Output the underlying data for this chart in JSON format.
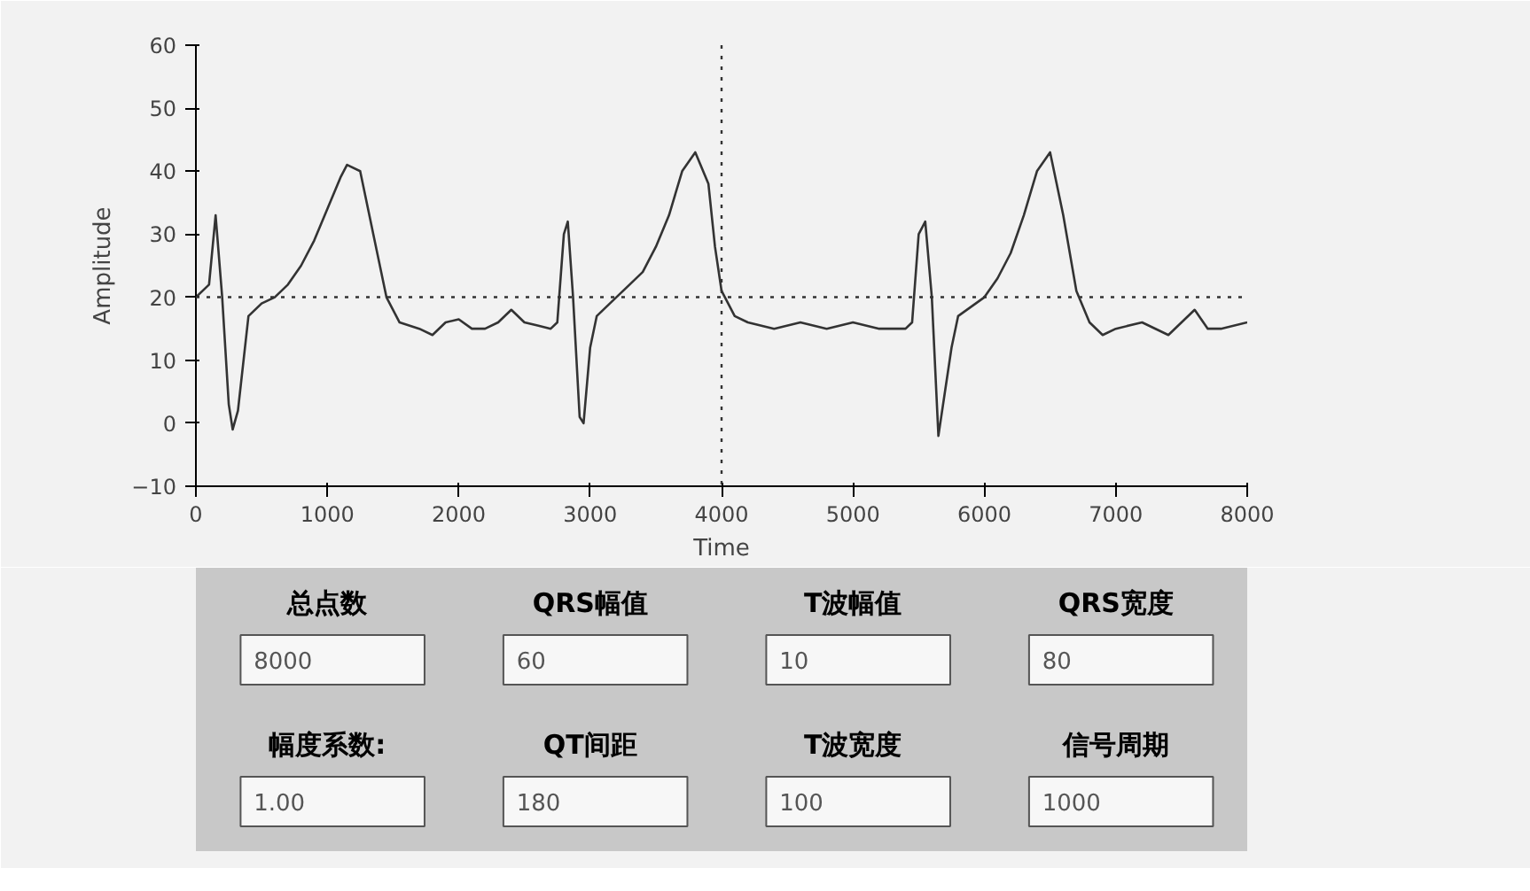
{
  "chart_data": {
    "type": "line",
    "xlabel": "Time",
    "ylabel": "Amplitude",
    "x": [
      0,
      100,
      150,
      200,
      250,
      280,
      320,
      400,
      500,
      600,
      700,
      800,
      900,
      1000,
      1100,
      1150,
      1250,
      1350,
      1450,
      1550,
      1700,
      1800,
      1900,
      2000,
      2100,
      2200,
      2300,
      2400,
      2500,
      2600,
      2700,
      2750,
      2800,
      2830,
      2870,
      2920,
      2950,
      3000,
      3050,
      3150,
      3300,
      3400,
      3500,
      3600,
      3700,
      3800,
      3900,
      3950,
      4000,
      4100,
      4200,
      4400,
      4600,
      4800,
      5000,
      5200,
      5400,
      5450,
      5500,
      5550,
      5600,
      5650,
      5700,
      5750,
      5800,
      6000,
      6100,
      6200,
      6300,
      6400,
      6500,
      6600,
      6700,
      6800,
      6900,
      7000,
      7200,
      7400,
      7500,
      7600,
      7700,
      7800,
      8000
    ],
    "series": [
      {
        "color": "#333333",
        "values": [
          20,
          22,
          33,
          20,
          3,
          -1,
          2,
          17,
          19,
          20,
          22,
          25,
          29,
          34,
          39,
          41,
          40,
          30,
          20,
          16,
          15,
          14,
          16,
          16.5,
          15,
          15,
          16,
          18,
          16,
          15.5,
          15,
          16,
          30,
          32,
          20,
          1,
          0,
          12,
          17,
          19,
          22,
          24,
          28,
          33,
          40,
          43,
          38,
          28,
          21,
          17,
          16,
          15,
          16,
          15,
          16,
          15,
          15,
          16,
          30,
          32,
          20,
          -2,
          5,
          12,
          17,
          20,
          23,
          27,
          33,
          40,
          43,
          33,
          21,
          16,
          14,
          15,
          16,
          14,
          16,
          18,
          15,
          15,
          16
        ]
      }
    ],
    "xlim": [
      0,
      8000
    ],
    "xticks": [
      0,
      1000,
      2000,
      3000,
      4000,
      5000,
      6000,
      7000,
      8000
    ],
    "ylim": [
      -10,
      60
    ],
    "yticks": [
      -10,
      0,
      10,
      20,
      30,
      40,
      50,
      60
    ],
    "grid": false,
    "marker": "none",
    "line_style": "solid",
    "ref_lines": [
      {
        "axis": "y",
        "value": 20,
        "color": "#333333",
        "line_style": "dotted"
      },
      {
        "axis": "x",
        "value": 4000,
        "color": "#333333",
        "line_style": "dotted"
      }
    ],
    "annotations": [
      "总点数",
      "8000",
      "QRS幅值",
      "60",
      "T波幅值",
      "10",
      "QRS宽度",
      "80",
      "幅度系数:",
      "1.00",
      "QT间距",
      "180",
      "T波宽度",
      "100",
      "信号周期",
      "1000"
    ]
  }
}
